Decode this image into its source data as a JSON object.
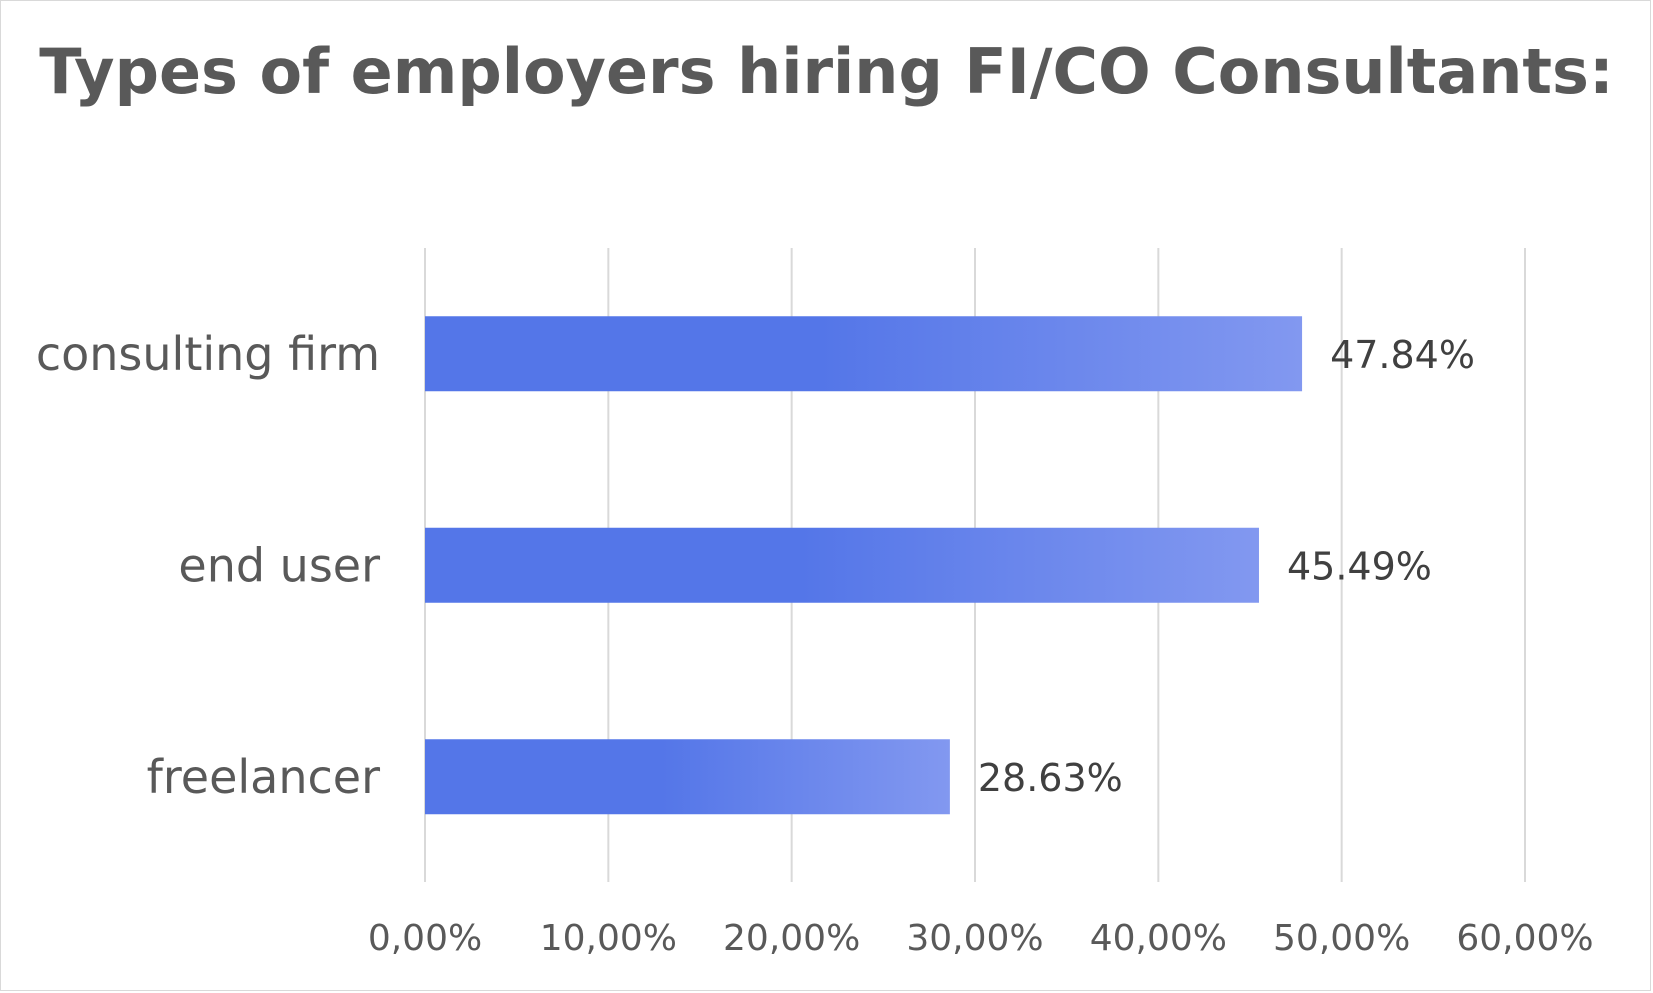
{
  "chart_data": {
    "type": "bar",
    "orientation": "horizontal",
    "title": "Types of employers hiring FI/CO Consultants:",
    "categories": [
      "consulting firm",
      "end user",
      "freelancer"
    ],
    "values": [
      47.84,
      45.49,
      28.63
    ],
    "data_labels": [
      "47.84%",
      "45.49%",
      "28.63%"
    ],
    "xlim": [
      0,
      60
    ],
    "x_ticks": [
      0,
      10,
      20,
      30,
      40,
      50,
      60
    ],
    "x_tick_labels": [
      "0,00%",
      "10,00%",
      "20,00%",
      "30,00%",
      "40,00%",
      "50,00%",
      "60,00%"
    ],
    "xlabel": "",
    "ylabel": "",
    "grid": "vertical",
    "legend": "none",
    "colors": {
      "bar_start": "#5476E8",
      "bar_end": "#8298F0",
      "grid": "#d9d9d9",
      "text": "#595959"
    }
  }
}
